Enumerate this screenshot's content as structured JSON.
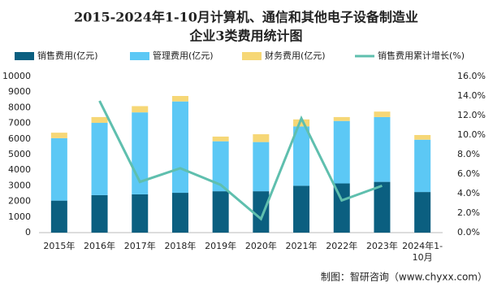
{
  "chart_data": {
    "type": "stacked-bar-line",
    "title": "2015-2024年1-10月计算机、通信和其他电子设备制造业",
    "subtitle": "企业3类费用统计图",
    "categories": [
      "2015年",
      "2016年",
      "2017年",
      "2018年",
      "2019年",
      "2020年",
      "2021年",
      "2022年",
      "2023年",
      "2024年1-10月"
    ],
    "series": [
      {
        "name": "销售费用(亿元)",
        "color": "#0b5f80",
        "values": [
          2050,
          2400,
          2450,
          2550,
          2650,
          2650,
          3000,
          3150,
          3250,
          2600
        ]
      },
      {
        "name": "管理费用(亿元)",
        "color": "#5cc8f5",
        "values": [
          4000,
          4630,
          5250,
          5850,
          3200,
          3150,
          3800,
          4000,
          4150,
          3350
        ]
      },
      {
        "name": "财务费用(亿元)",
        "color": "#f6d776",
        "values": [
          350,
          370,
          400,
          350,
          300,
          500,
          450,
          250,
          350,
          300
        ]
      },
      {
        "name": "销售费用累计增长(%)",
        "color": "#5fbfae",
        "axis": "y2",
        "values": [
          null,
          13.5,
          5.2,
          6.6,
          4.9,
          1.4,
          11.7,
          3.3,
          4.8,
          null
        ]
      }
    ],
    "ylim": [
      0,
      10000
    ],
    "yticks": [
      0,
      1000,
      2000,
      3000,
      4000,
      5000,
      6000,
      7000,
      8000,
      9000,
      10000
    ],
    "y2lim": [
      0,
      16
    ],
    "y2ticks": [
      {
        "value": 0,
        "label": "0.0%"
      },
      {
        "value": 2,
        "label": "2.0%"
      },
      {
        "value": 4,
        "label": "4.0%"
      },
      {
        "value": 6,
        "label": "6.0%"
      },
      {
        "value": 8,
        "label": "8.0%"
      },
      {
        "value": 10,
        "label": "10.0%"
      },
      {
        "value": 12,
        "label": "12.0%"
      },
      {
        "value": 14,
        "label": "14.0%"
      },
      {
        "value": 16,
        "label": "16.0%"
      }
    ],
    "source": "制图：智研咨询（www.chyxx.com）"
  }
}
